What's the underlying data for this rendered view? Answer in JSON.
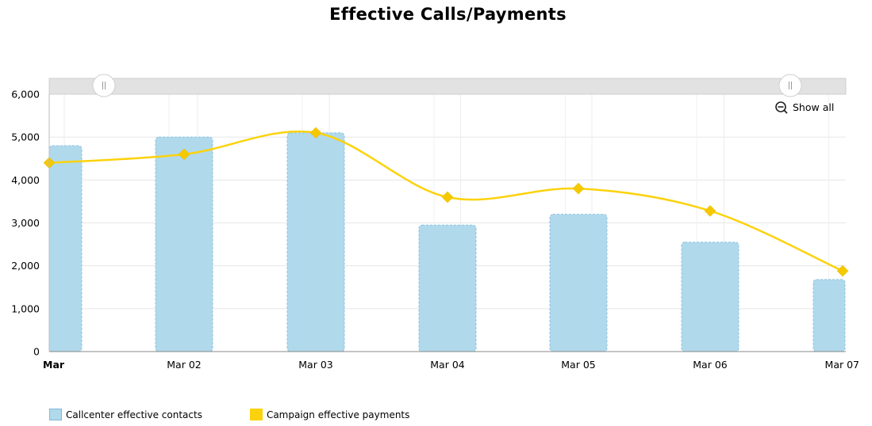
{
  "chart_data": {
    "type": "bar+line",
    "title": "Effective Calls/Payments",
    "categories": [
      "Mar",
      "Mar 02",
      "Mar 03",
      "Mar 04",
      "Mar 05",
      "Mar 06",
      "Mar 07"
    ],
    "y_ticks": [
      "0",
      "1,000",
      "2,000",
      "3,000",
      "4,000",
      "5,000",
      "6,000"
    ],
    "ylim": [
      0,
      6000
    ],
    "grid": true,
    "legend_position": "bottom-left",
    "series": [
      {
        "name": "Callcenter effective contacts",
        "type": "bar",
        "color": "#b0d9ec",
        "values": [
          4800,
          5000,
          5100,
          2950,
          3200,
          2550,
          1680
        ]
      },
      {
        "name": "Campaign effective payments",
        "type": "line",
        "color": "#fcd20c",
        "values": [
          4400,
          4600,
          5100,
          3600,
          3800,
          3280,
          1880
        ]
      }
    ]
  },
  "controls": {
    "show_all_label": "Show all"
  },
  "colors": {
    "bar": "#b0d9ec",
    "bar_border": "#8fc2de",
    "line": "#fcd20c",
    "marker": "#f5c800"
  }
}
